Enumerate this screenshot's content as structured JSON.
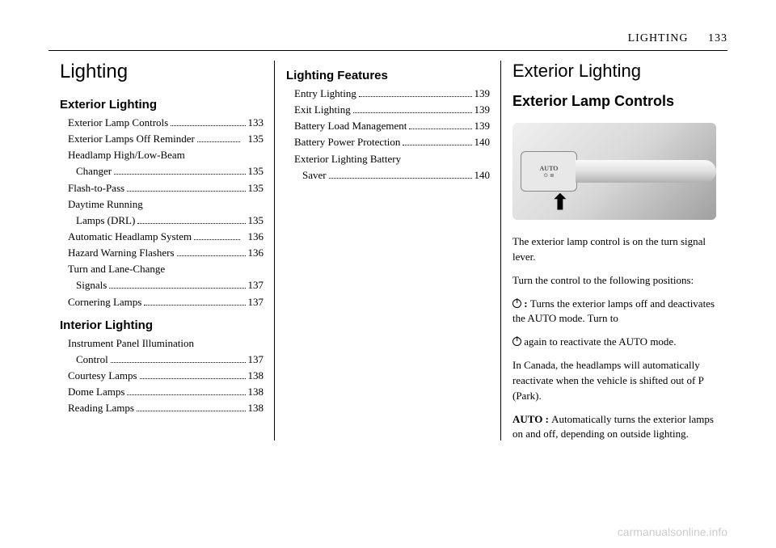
{
  "header": {
    "section": "LIGHTING",
    "page": "133"
  },
  "col1": {
    "title": "Lighting",
    "group1_title": "Exterior Lighting",
    "toc1": [
      {
        "text": "Exterior Lamp Controls",
        "page": "133",
        "indent": 1
      },
      {
        "text": "Exterior Lamps Off Reminder",
        "page": "135",
        "indent": 1,
        "gap": true
      },
      {
        "text": "Headlamp High/Low-Beam",
        "page": "",
        "indent": 1
      },
      {
        "text": "Changer",
        "page": "135",
        "indent": 2
      },
      {
        "text": "Flash-to-Pass",
        "page": "135",
        "indent": 1
      },
      {
        "text": "Daytime Running",
        "page": "",
        "indent": 1
      },
      {
        "text": "Lamps (DRL)",
        "page": "135",
        "indent": 2
      },
      {
        "text": "Automatic Headlamp System",
        "page": "136",
        "indent": 1,
        "gap": true
      },
      {
        "text": "Hazard Warning Flashers",
        "page": "136",
        "indent": 1
      },
      {
        "text": "Turn and Lane-Change",
        "page": "",
        "indent": 1
      },
      {
        "text": "Signals",
        "page": "137",
        "indent": 2
      },
      {
        "text": "Cornering Lamps",
        "page": "137",
        "indent": 1
      }
    ],
    "group2_title": "Interior Lighting",
    "toc2": [
      {
        "text": "Instrument Panel Illumination",
        "page": "",
        "indent": 1
      },
      {
        "text": "Control",
        "page": "137",
        "indent": 2
      },
      {
        "text": "Courtesy Lamps",
        "page": "138",
        "indent": 1
      },
      {
        "text": "Dome Lamps",
        "page": "138",
        "indent": 1
      },
      {
        "text": "Reading Lamps",
        "page": "138",
        "indent": 1
      }
    ]
  },
  "col2": {
    "group3_title": "Lighting Features",
    "toc3": [
      {
        "text": "Entry Lighting",
        "page": "139",
        "indent": 1
      },
      {
        "text": "Exit Lighting",
        "page": "139",
        "indent": 1
      },
      {
        "text": "Battery Load Management",
        "page": "139",
        "indent": 1
      },
      {
        "text": "Battery Power Protection",
        "page": "140",
        "indent": 1
      },
      {
        "text": "Exterior Lighting Battery",
        "page": "",
        "indent": 1
      },
      {
        "text": "Saver",
        "page": "140",
        "indent": 2
      }
    ]
  },
  "col3": {
    "title": "Exterior Lighting",
    "subtitle": "Exterior Lamp Controls",
    "figure_auto": "AUTO",
    "p1": "The exterior lamp control is on the turn signal lever.",
    "p2": "Turn the control to the following positions:",
    "p3a": " : ",
    "p3b": "Turns the exterior lamps off and deactivates the AUTO mode. Turn to",
    "p4": " again to reactivate the AUTO mode.",
    "p5": "In Canada, the headlamps will automatically reactivate when the vehicle is shifted out of P (Park).",
    "p6a": "AUTO : ",
    "p6b": "Automatically turns the exterior lamps on and off, depending on outside lighting."
  },
  "watermark": "carmanualsonline.info"
}
